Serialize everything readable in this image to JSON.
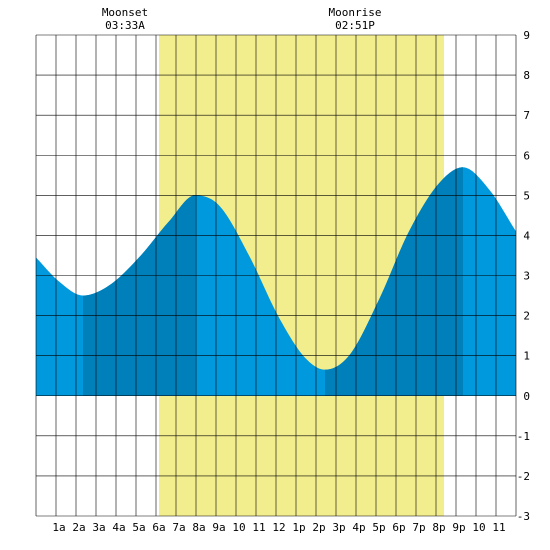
{
  "moon_events": [
    {
      "label": "Moonset",
      "time": "03:33A",
      "hour": 3.55
    },
    {
      "label": "Moonrise",
      "time": "02:51P",
      "hour": 14.85
    }
  ],
  "colors": {
    "daylight": "#f2ee8e",
    "tide_light": "#0099dd",
    "tide_dark": "#0080bb",
    "grid": "#000000",
    "background": "#ffffff"
  },
  "chart_data": {
    "type": "area",
    "title": "",
    "xlabel": "",
    "ylabel": "",
    "xlim": [
      -0.15,
      23.85
    ],
    "ylim": [
      -3,
      9
    ],
    "x_tick_labels": [
      "1a",
      "2a",
      "3a",
      "4a",
      "5a",
      "6a",
      "7a",
      "8a",
      "9a",
      "10",
      "11",
      "12",
      "1p",
      "2p",
      "3p",
      "4p",
      "5p",
      "6p",
      "7p",
      "8p",
      "9p",
      "10",
      "11"
    ],
    "y_tick_labels": [
      "-3",
      "-2",
      "-1",
      "0",
      "1",
      "2",
      "3",
      "4",
      "5",
      "6",
      "7",
      "8",
      "9"
    ],
    "daylight_hours": [
      6.0,
      20.25
    ],
    "tide_extremes": [
      {
        "hour": 2.2,
        "height": 2.5,
        "type": "low"
      },
      {
        "hour": 7.8,
        "height": 5.0,
        "type": "high"
      },
      {
        "hour": 14.3,
        "height": 0.65,
        "type": "low"
      },
      {
        "hour": 21.2,
        "height": 5.7,
        "type": "high"
      }
    ],
    "dark_bands_hours": [
      [
        2.2,
        7.8
      ],
      [
        14.3,
        21.2
      ]
    ],
    "series": [
      {
        "x": [
          -0.15,
          1.0,
          2.2,
          3.5,
          5.0,
          6.5,
          7.8,
          9.0,
          10.5,
          12.0,
          13.3,
          14.3,
          15.5,
          17.0,
          18.5,
          20.0,
          21.2,
          22.5,
          23.85
        ],
        "y": [
          3.45,
          2.85,
          2.5,
          2.75,
          3.45,
          4.35,
          5.0,
          4.75,
          3.5,
          1.95,
          0.95,
          0.65,
          1.0,
          2.4,
          4.1,
          5.3,
          5.7,
          5.15,
          4.1
        ]
      }
    ]
  }
}
